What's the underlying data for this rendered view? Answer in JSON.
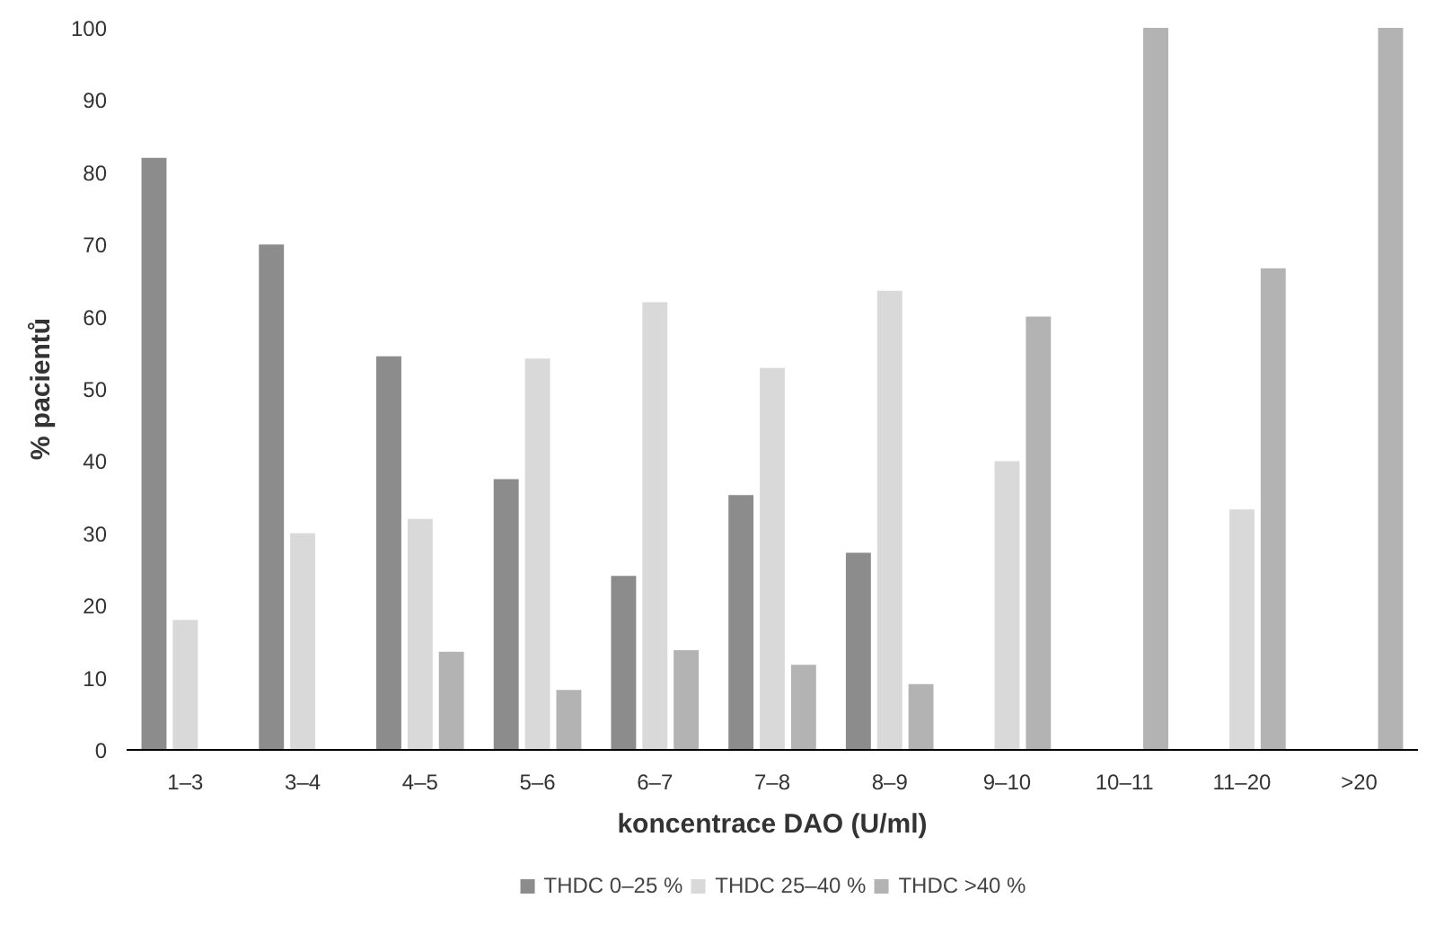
{
  "chart_data": {
    "type": "bar",
    "xlabel": "koncentrace DAO (U/ml)",
    "ylabel": "% pacientů",
    "categories": [
      "1–3",
      "3–4",
      "4–5",
      "5–6",
      "6–7",
      "7–8",
      "8–9",
      "9–10",
      "10–11",
      "11–20",
      ">20"
    ],
    "series": [
      {
        "name": "THDC 0–25 %",
        "color": "#8c8c8c",
        "values": [
          82,
          70,
          54.5,
          37.5,
          24.1,
          35.3,
          27.3,
          0,
          0,
          0,
          0
        ]
      },
      {
        "name": "THDC 25–40 %",
        "color": "#d9d9d9",
        "values": [
          18,
          30,
          32,
          54.2,
          62,
          52.9,
          63.6,
          40,
          0,
          33.3,
          0
        ]
      },
      {
        "name": "THDC >40 %",
        "color": "#b3b3b3",
        "values": [
          0,
          0,
          13.6,
          8.3,
          13.8,
          11.8,
          9.1,
          60,
          100,
          66.7,
          100
        ]
      }
    ],
    "ylim": [
      0,
      100
    ],
    "yticks": [
      0,
      10,
      20,
      30,
      40,
      50,
      60,
      70,
      80,
      90,
      100
    ],
    "grid": false,
    "legend": "bottom"
  }
}
